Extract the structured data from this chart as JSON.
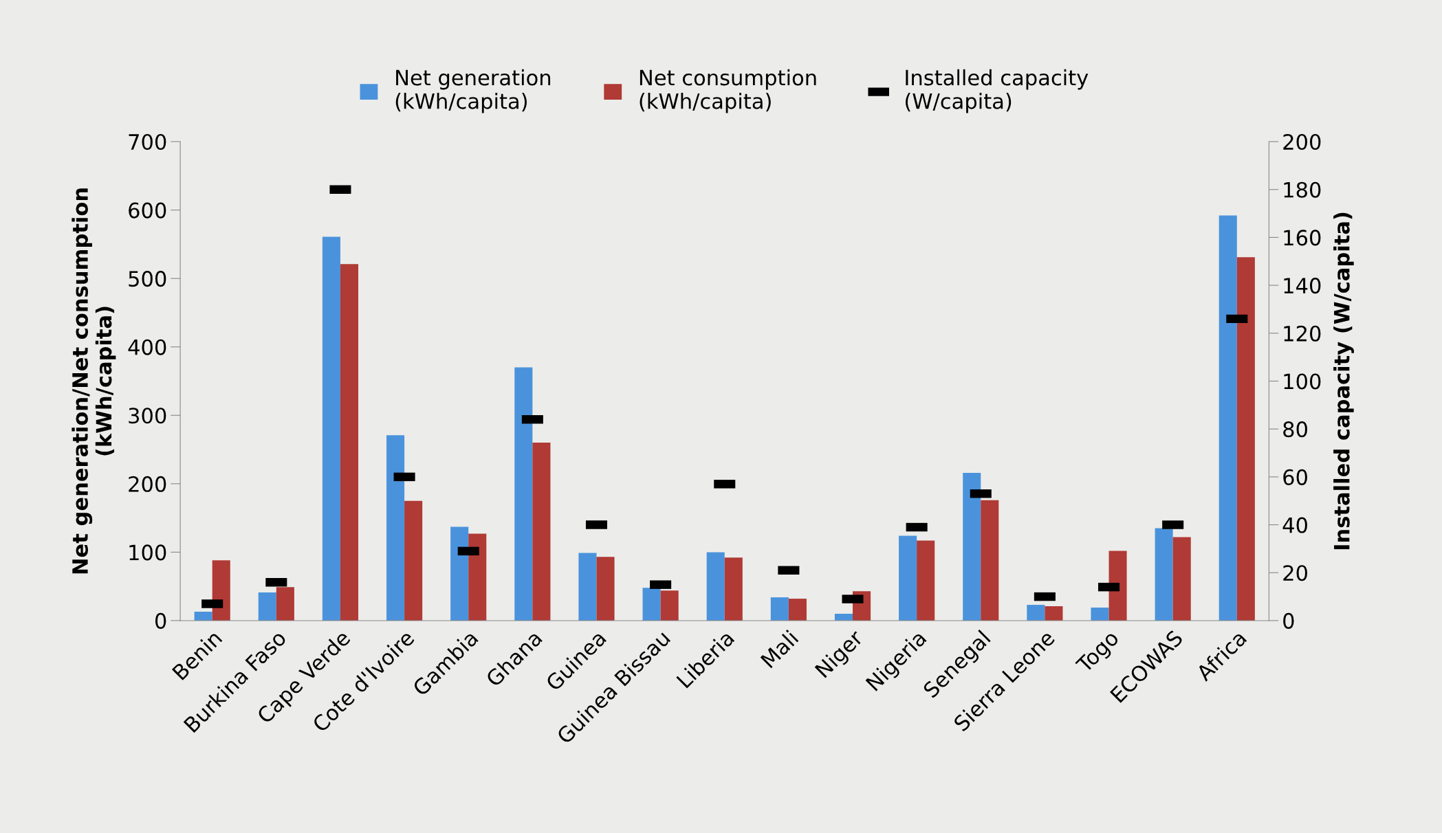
{
  "chart_data": {
    "type": "bar",
    "ylabel": "Net generation/Net consumption\n(kWh/capita)",
    "y2label": "Installed capacity (W/capita)",
    "categories": [
      "Benin",
      "Burkina Faso",
      "Cape Verde",
      "Cote d'Ivoire",
      "Gambia",
      "Ghana",
      "Guinea",
      "Guinea Bissau",
      "Liberia",
      "Mali",
      "Niger",
      "Nigeria",
      "Senegal",
      "Sierra Leone",
      "Togo",
      "ECOWAS",
      "Africa"
    ],
    "series": [
      {
        "name": "Net generation\n(kWh/capita)",
        "color": "#4a93dc",
        "values": [
          13,
          41,
          561,
          271,
          137,
          370,
          99,
          48,
          100,
          34,
          10,
          124,
          216,
          23,
          19,
          135,
          592
        ]
      },
      {
        "name": "Net consumption\n(kWh/capita)",
        "color": "#b03a35",
        "values": [
          88,
          49,
          521,
          175,
          127,
          260,
          93,
          44,
          92,
          32,
          43,
          117,
          176,
          21,
          102,
          122,
          531
        ]
      },
      {
        "name": "Installed capacity\n(W/capita)",
        "type": "scatter",
        "axis": "y2",
        "color": "#000000",
        "values": [
          7,
          16,
          180,
          60,
          29,
          84,
          40,
          15,
          57,
          21,
          9,
          39,
          53,
          10,
          14,
          40,
          126
        ]
      }
    ],
    "ylim": [
      0,
      700
    ],
    "yticks": [
      0,
      100,
      200,
      300,
      400,
      500,
      600,
      700
    ],
    "y2lim": [
      0,
      200
    ],
    "y2ticks": [
      0,
      20,
      40,
      60,
      80,
      100,
      120,
      140,
      160,
      180,
      200
    ],
    "grid": false,
    "legend": "top"
  }
}
